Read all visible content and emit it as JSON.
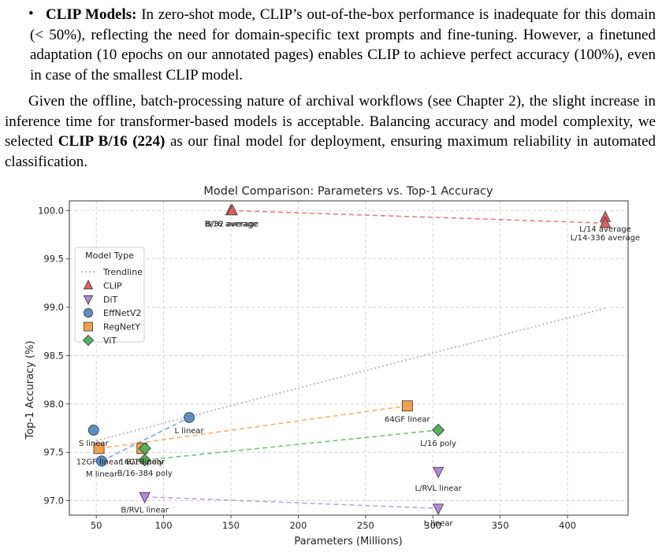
{
  "bullet": {
    "lead": "CLIP Models:",
    "text": "In zero-shot mode, CLIP’s out-of-the-box performance is inadequate for this domain (< 50%), reflecting the need for domain-specific text prompts and fine-tuning. However, a finetuned adaptation (10 epochs on our annotated pages) enables CLIP to achieve perfect accuracy (100%), even in case of the smallest CLIP model."
  },
  "paragraph": {
    "part1": "Given the offline, batch-processing nature of archival workflows (see Chapter 2), the slight increase in inference time for transformer-based models is acceptable. Balancing accuracy and model complexity, we selected ",
    "bold": "CLIP B/16 (224)",
    "part2": " as our final model for deployment, ensuring maximum reliability in automated classification."
  },
  "chart_data": {
    "type": "scatter",
    "title": "Model Comparison: Parameters vs. Top-1 Accuracy",
    "xlabel": "Parameters (Millions)",
    "ylabel": "Top-1 Accuracy (%)",
    "xlim": [
      30,
      445
    ],
    "ylim": [
      96.85,
      100.1
    ],
    "xticks": [
      50,
      100,
      150,
      200,
      250,
      300,
      350,
      400
    ],
    "yticks": [
      97.0,
      97.5,
      98.0,
      98.5,
      99.0,
      99.5,
      100.0
    ],
    "grid": true,
    "legend": {
      "title": "Model Type",
      "placement": "upper-left",
      "entries": [
        "Trendline",
        "CLIP",
        "DiT",
        "EffNetV2",
        "RegNetY",
        "ViT"
      ]
    },
    "trendline": {
      "x": [
        50,
        428
      ],
      "y": [
        97.62,
        98.99
      ],
      "color": "#bbbbbb"
    },
    "series": [
      {
        "name": "CLIP",
        "marker": "triangle-up",
        "color": "#e06060",
        "points": [
          {
            "x": 150,
            "y": 100.0
          },
          {
            "x": 151,
            "y": 100.0
          },
          {
            "x": 428,
            "y": 99.93
          },
          {
            "x": 428,
            "y": 99.87
          }
        ],
        "line": {
          "x": [
            150,
            428
          ],
          "y": [
            100.0,
            99.87
          ]
        },
        "labels": [
          {
            "text": "B/16 average",
            "x": 150,
            "y": 100.0
          },
          {
            "text": "B/32 average",
            "x": 151,
            "y": 100.0
          },
          {
            "text": "L/14 average",
            "x": 428,
            "y": 99.93
          },
          {
            "text": "L/14-336 average",
            "x": 428,
            "y": 99.87
          }
        ]
      },
      {
        "name": "DiT",
        "marker": "triangle-down",
        "color": "#b08ad8",
        "points": [
          {
            "x": 86,
            "y": 97.04
          },
          {
            "x": 304,
            "y": 97.3
          },
          {
            "x": 304,
            "y": 96.92
          }
        ],
        "line": {
          "x": [
            86,
            304
          ],
          "y": [
            97.04,
            96.92
          ]
        },
        "labels": [
          {
            "text": "B/RVL linear",
            "x": 86,
            "y": 97.04
          },
          {
            "text": "L/RVL linear",
            "x": 304,
            "y": 97.3
          },
          {
            "text": "L linear",
            "x": 304,
            "y": 96.92
          }
        ]
      },
      {
        "name": "EffNetV2",
        "marker": "circle",
        "color": "#5a8fc4",
        "points": [
          {
            "x": 48,
            "y": 97.73
          },
          {
            "x": 54,
            "y": 97.41
          },
          {
            "x": 119,
            "y": 97.86
          }
        ],
        "line": {
          "x": [
            54,
            119
          ],
          "y": [
            97.41,
            97.86
          ]
        },
        "labels": [
          {
            "text": "S linear",
            "x": 48,
            "y": 97.73
          },
          {
            "text": "M linear",
            "x": 54,
            "y": 97.41
          },
          {
            "text": "L linear",
            "x": 119,
            "y": 97.86
          }
        ]
      },
      {
        "name": "RegNetY",
        "marker": "square",
        "color": "#f4a04a",
        "points": [
          {
            "x": 52,
            "y": 97.54
          },
          {
            "x": 84,
            "y": 97.54
          },
          {
            "x": 281,
            "y": 97.98
          }
        ],
        "line": {
          "x": [
            52,
            281
          ],
          "y": [
            97.54,
            97.98
          ]
        },
        "labels": [
          {
            "text": "12GF linear",
            "x": 52,
            "y": 97.54
          },
          {
            "text": "16GF linear",
            "x": 84,
            "y": 97.54
          },
          {
            "text": "64GF linear",
            "x": 281,
            "y": 97.98
          }
        ]
      },
      {
        "name": "ViT",
        "marker": "diamond",
        "color": "#58b05a",
        "points": [
          {
            "x": 86,
            "y": 97.54
          },
          {
            "x": 86,
            "y": 97.42
          },
          {
            "x": 304,
            "y": 97.73
          }
        ],
        "line": {
          "x": [
            86,
            304
          ],
          "y": [
            97.42,
            97.73
          ]
        },
        "labels": [
          {
            "text": "B/16 poly",
            "x": 86,
            "y": 97.54
          },
          {
            "text": "B/16-384 poly",
            "x": 86,
            "y": 97.42
          },
          {
            "text": "L/16 poly",
            "x": 304,
            "y": 97.73
          }
        ]
      }
    ]
  }
}
